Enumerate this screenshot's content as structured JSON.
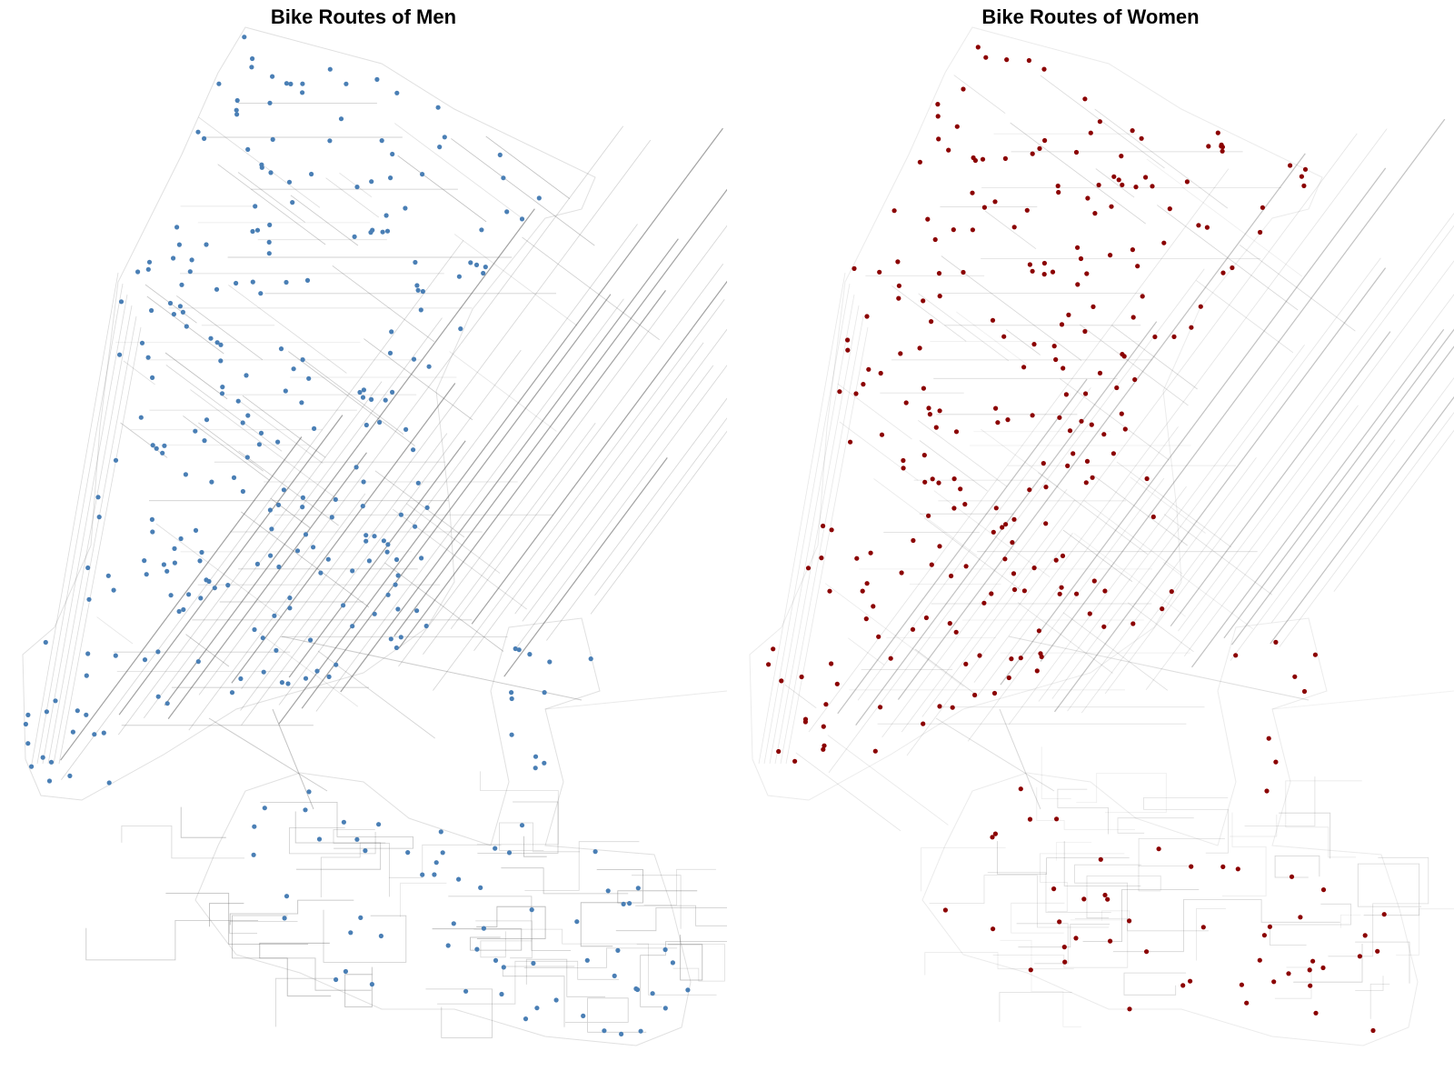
{
  "panels": [
    {
      "title": "Bike Routes of Men",
      "dot_color": "#4a7fb5",
      "route_color": "#555555",
      "route_intensity": 1.0
    },
    {
      "title": "Bike Routes of Women",
      "dot_color": "#8b0000",
      "route_color": "#555555",
      "route_intensity": 0.65
    }
  ]
}
